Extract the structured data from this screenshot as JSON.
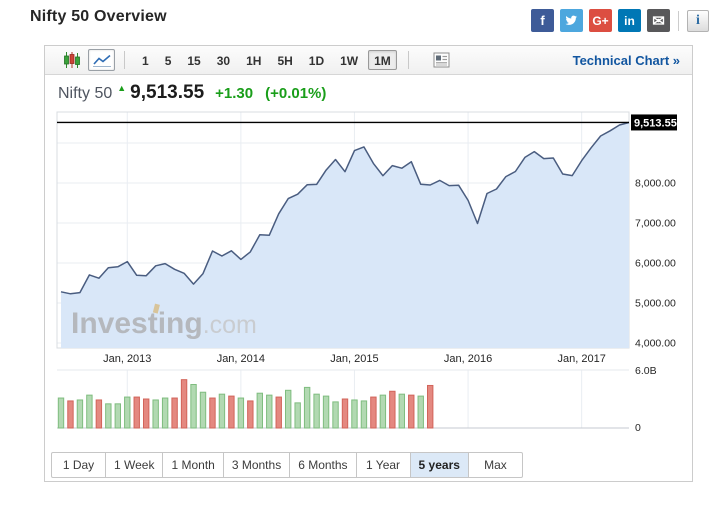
{
  "header": {
    "title": "Nifty 50 Overview",
    "social_icons": [
      {
        "name": "facebook",
        "glyph": "f",
        "bg": "#3e5b98"
      },
      {
        "name": "twitter",
        "glyph": "bird",
        "bg": "#4da7de"
      },
      {
        "name": "googleplus",
        "glyph": "G+",
        "bg": "#dc4e41"
      },
      {
        "name": "linkedin",
        "glyph": "in",
        "bg": "#0077b5"
      },
      {
        "name": "email",
        "glyph": "✉",
        "bg": "#58585a"
      }
    ],
    "info_button_glyph": "i"
  },
  "toolbar": {
    "chart_type_buttons": [
      "candlestick",
      "line"
    ],
    "selected_chart_type": "line",
    "intervals": [
      "1",
      "5",
      "15",
      "30",
      "1H",
      "5H",
      "1D",
      "1W",
      "1M"
    ],
    "selected_interval": "1M",
    "link": "Technical Chart »"
  },
  "quote": {
    "name": "Nifty 50",
    "direction": "up",
    "arrow": "▲",
    "price": "9,513.55",
    "change": "+1.30",
    "change_pct": "(+0.01%)"
  },
  "watermark": {
    "text_main": "Investing",
    "text_suffix": ".com"
  },
  "chart_data": {
    "type": "area",
    "title": "Nifty 50 index, 1M interval, 5 years",
    "x_months": "Jun 2012 to Jun 2017, one point per month",
    "values": [
      5279,
      5229,
      5259,
      5703,
      5620,
      5880,
      5905,
      6035,
      5693,
      5683,
      5930,
      5986,
      5842,
      5742,
      5472,
      5735,
      6299,
      6176,
      6304,
      6090,
      6277,
      6704,
      6696,
      7230,
      7611,
      7721,
      7954,
      7965,
      8322,
      8588,
      8283,
      8809,
      8902,
      8491,
      8182,
      8434,
      8369,
      8533,
      7971,
      7949,
      8066,
      7935,
      7946,
      7564,
      6987,
      7738,
      7850,
      8160,
      8288,
      8639,
      8786,
      8611,
      8626,
      8225,
      8186,
      8561,
      8880,
      9174,
      9304,
      9451,
      9513.55
    ],
    "last_price": 9513.55,
    "last_price_label": "9,513.55",
    "x_ticks": [
      {
        "index": 7,
        "label": "Jan, 2013"
      },
      {
        "index": 19,
        "label": "Jan, 2014"
      },
      {
        "index": 31,
        "label": "Jan, 2015"
      },
      {
        "index": 43,
        "label": "Jan, 2016"
      },
      {
        "index": 55,
        "label": "Jan, 2017"
      }
    ],
    "y_gridlines": [
      {
        "price": 9000,
        "label": ""
      },
      {
        "price": 8000,
        "label": "8,000.00"
      },
      {
        "price": 7000,
        "label": "7,000.00"
      },
      {
        "price": 6000,
        "label": "6,000.00"
      },
      {
        "price": 5000,
        "label": "5,000.00"
      },
      {
        "price": 4000,
        "label": "4,000.00"
      }
    ],
    "ylim": [
      3875,
      9775
    ],
    "grid": true,
    "volume": {
      "unit": "B",
      "ylim": [
        0,
        6
      ],
      "tick_top": "6.0B",
      "tick_bottom": "0",
      "values": [
        3.1,
        2.8,
        2.9,
        3.4,
        2.9,
        2.5,
        2.5,
        3.2,
        3.2,
        3.0,
        2.9,
        3.1,
        3.1,
        5.0,
        4.5,
        3.7,
        3.1,
        3.5,
        3.3,
        3.1,
        2.8,
        3.6,
        3.4,
        3.2,
        3.9,
        2.6,
        4.2,
        3.5,
        3.3,
        2.7,
        3.0,
        2.9,
        2.8,
        3.2,
        3.4,
        3.8,
        3.5,
        3.4,
        3.3,
        4.4
      ],
      "colors": [
        "G",
        "R",
        "G",
        "G",
        "R",
        "G",
        "G",
        "G",
        "R",
        "R",
        "G",
        "G",
        "R",
        "R",
        "G",
        "G",
        "R",
        "G",
        "R",
        "G",
        "R",
        "G",
        "G",
        "R",
        "G",
        "G",
        "G",
        "G",
        "G",
        "G",
        "R",
        "G",
        "G",
        "R",
        "G",
        "R",
        "G",
        "R",
        "G",
        "R"
      ]
    },
    "colors": {
      "area_fill": "#d9e7f8",
      "line": "#4a5d80",
      "grid": "#e9edf2",
      "plot_border": "#d8dce1",
      "current_price_line": "#000000",
      "badge_bg": "#000000",
      "badge_text": "#ffffff",
      "volume_up_fill": "#b2d9b2",
      "volume_up_stroke": "#7fbd7f",
      "volume_down_fill": "#e48880",
      "volume_down_stroke": "#d2645a",
      "up_green": "#1a9e1a",
      "link_blue": "#1256a0"
    }
  },
  "ranges": {
    "buttons": [
      "1 Day",
      "1 Week",
      "1 Month",
      "3 Months",
      "6 Months",
      "1 Year",
      "5 years",
      "Max"
    ],
    "selected": "5 years"
  }
}
